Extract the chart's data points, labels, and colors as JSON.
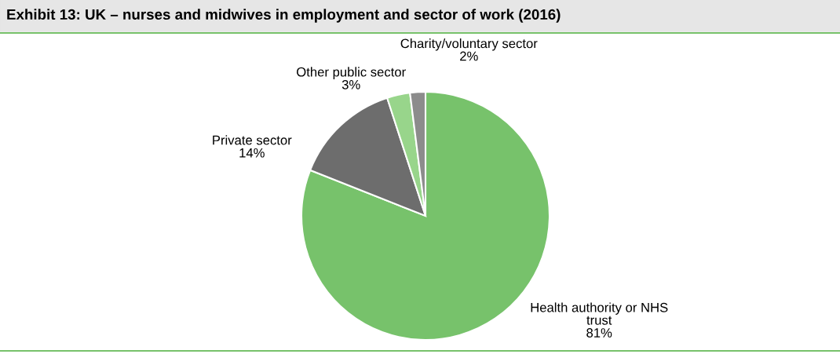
{
  "chart_data": {
    "type": "pie",
    "title": "Exhibit 13: UK – nurses and midwives in employment and sector of work (2016)",
    "categories": [
      "Health authority or NHS\ntrust",
      "Private sector",
      "Other public sector",
      "Charity/voluntary sector"
    ],
    "values": [
      81,
      14,
      3,
      2
    ],
    "value_labels": [
      "81%",
      "14%",
      "3%",
      "2%"
    ],
    "colors": [
      "#77c26b",
      "#6d6d6d",
      "#98d58b",
      "#8c8c8c"
    ],
    "legend": false
  }
}
